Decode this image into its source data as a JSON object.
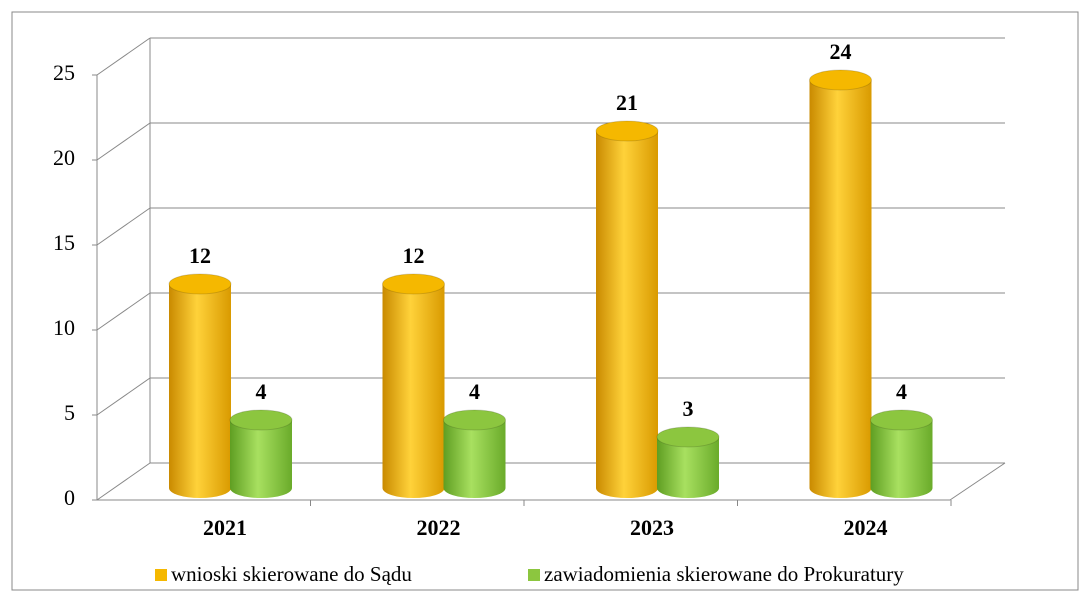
{
  "chart_data": {
    "type": "bar3d",
    "categories": [
      "2021",
      "2022",
      "2023",
      "2024"
    ],
    "series": [
      {
        "name": "wnioski skierowane do Sądu",
        "color": "#f5b800",
        "values": [
          12,
          12,
          21,
          24
        ]
      },
      {
        "name": "zawiadomienia skierowane do Prokuratury",
        "color": "#8cc63f",
        "values": [
          4,
          4,
          3,
          4
        ]
      }
    ],
    "ylim": [
      0,
      25
    ],
    "yticks": [
      0,
      5,
      10,
      15,
      20,
      25
    ],
    "grid": true,
    "legend": "bottom"
  }
}
